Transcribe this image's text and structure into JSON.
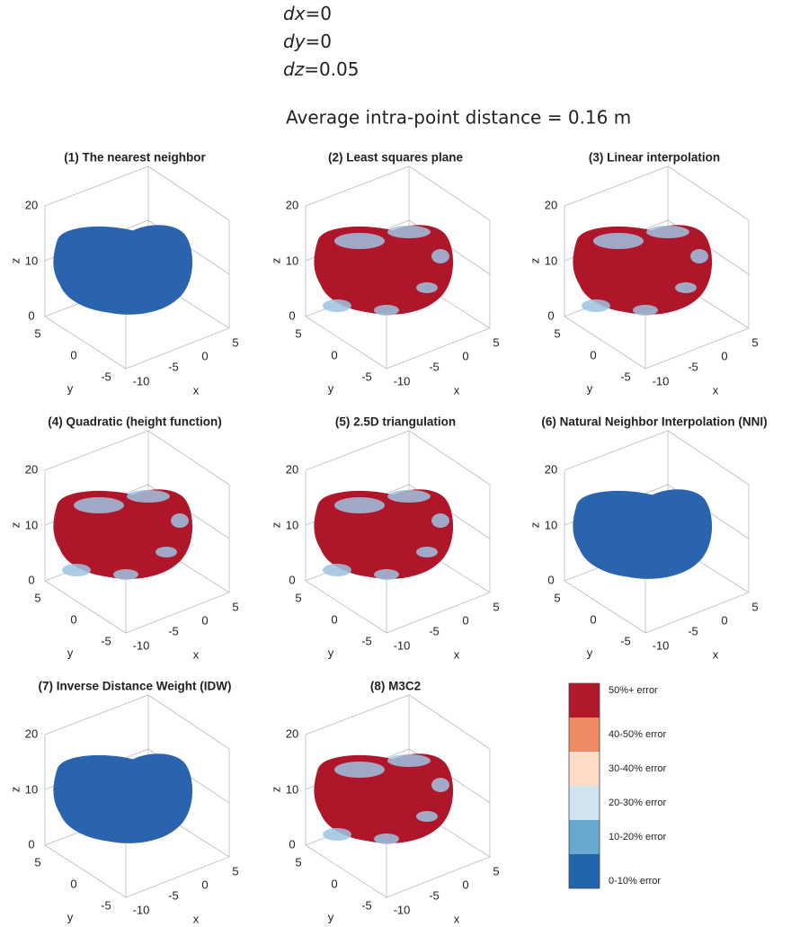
{
  "header": {
    "offsets": [
      {
        "name": "dx",
        "rest": "=0"
      },
      {
        "name": "dy",
        "rest": "=0"
      },
      {
        "name": "dz",
        "rest": "=0.05"
      }
    ],
    "note": "Average intra-point distance = 0.16 m"
  },
  "axes": {
    "z_label": "z",
    "y_label": "y",
    "x_label": "x",
    "zticks": [
      "0",
      "10",
      "20"
    ],
    "yticks": [
      "5",
      "0",
      "-5"
    ],
    "xticks": [
      "-10",
      "-5",
      "0",
      "5"
    ]
  },
  "panels": [
    {
      "title": "(1) The nearest neighbor",
      "color": "#2a63ae"
    },
    {
      "title": "(2) Least squares plane",
      "color": "#b0162a"
    },
    {
      "title": "(3) Linear interpolation",
      "color": "#b0162a"
    },
    {
      "title": "(4) Quadratic (height function)",
      "color": "#b0162a"
    },
    {
      "title": "(5) 2.5D triangulation",
      "color": "#b0162a"
    },
    {
      "title": "(6) Natural Neighbor Interpolation (NNI)",
      "color": "#2a63ae"
    },
    {
      "title": "(7) Inverse Distance Weight (IDW)",
      "color": "#2a63ae"
    },
    {
      "title": "(8) M3C2",
      "color": "#b0162a"
    }
  ],
  "legend": [
    {
      "label": "50%+ error",
      "color": "#b2182b"
    },
    {
      "label": "40-50% error",
      "color": "#ef8a62"
    },
    {
      "label": "30-40% error",
      "color": "#fddbc7"
    },
    {
      "label": "20-30% error",
      "color": "#d1e5f0"
    },
    {
      "label": "10-20% error",
      "color": "#67a9cf"
    },
    {
      "label": "0-10% error",
      "color": "#2166ac"
    }
  ]
}
